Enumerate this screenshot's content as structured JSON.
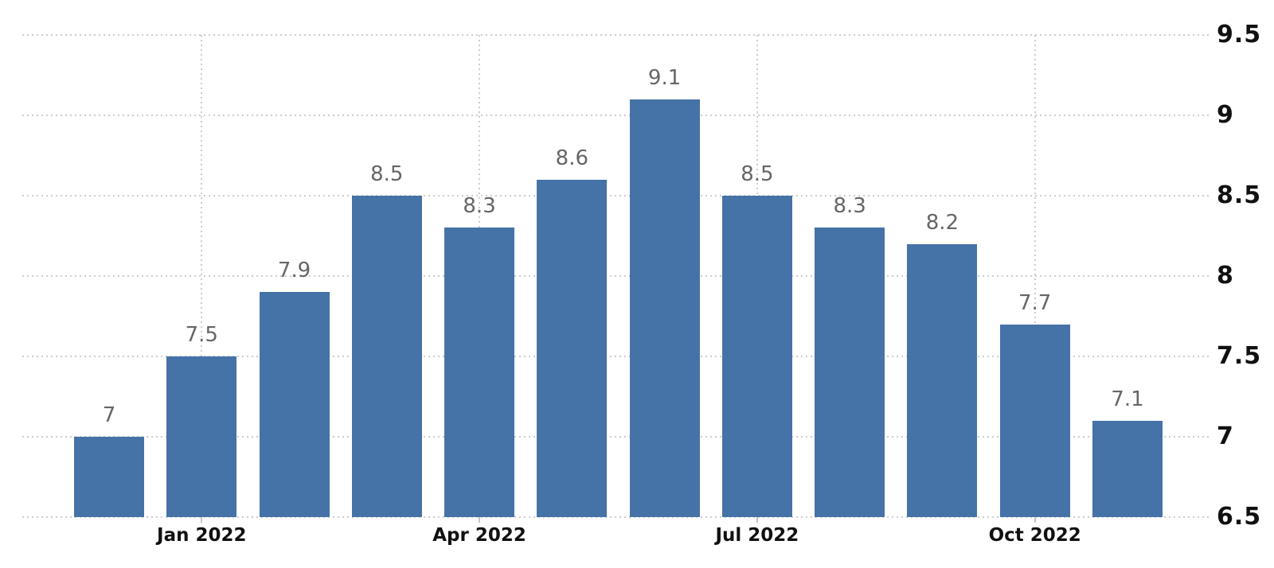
{
  "chart_data": {
    "type": "bar",
    "title": "",
    "values": [
      7,
      7.5,
      7.9,
      8.5,
      8.3,
      8.6,
      9.1,
      8.5,
      8.3,
      8.2,
      7.7,
      7.1
    ],
    "bar_labels": [
      "7",
      "7.5",
      "7.9",
      "8.5",
      "8.3",
      "8.6",
      "9.1",
      "8.5",
      "8.3",
      "8.2",
      "7.7",
      "7.1"
    ],
    "x_ticks": [
      {
        "index": 1,
        "label": "Jan 2022"
      },
      {
        "index": 4,
        "label": "Apr 2022"
      },
      {
        "index": 7,
        "label": "Jul 2022"
      },
      {
        "index": 10,
        "label": "Oct 2022"
      }
    ],
    "y_ticks": [
      {
        "value": 9.5,
        "label": "9.5"
      },
      {
        "value": 9,
        "label": "9"
      },
      {
        "value": 8.5,
        "label": "8.5"
      },
      {
        "value": 8,
        "label": "8"
      },
      {
        "value": 7.5,
        "label": "7.5"
      },
      {
        "value": 7,
        "label": "7"
      },
      {
        "value": 6.5,
        "label": "6.5"
      }
    ],
    "ylim": [
      6.5,
      9.5
    ],
    "y_axis_side": "right",
    "xlabel": "",
    "ylabel": "",
    "legend": "none",
    "grid": "dotted",
    "colors": {
      "bar": "#4572a7",
      "bar_value_label": "#666666",
      "axis_tick_label": "#111111",
      "gridline": "#cccccc",
      "axis_tick_mark": "#c5c5c5",
      "background": "#ffffff"
    }
  }
}
